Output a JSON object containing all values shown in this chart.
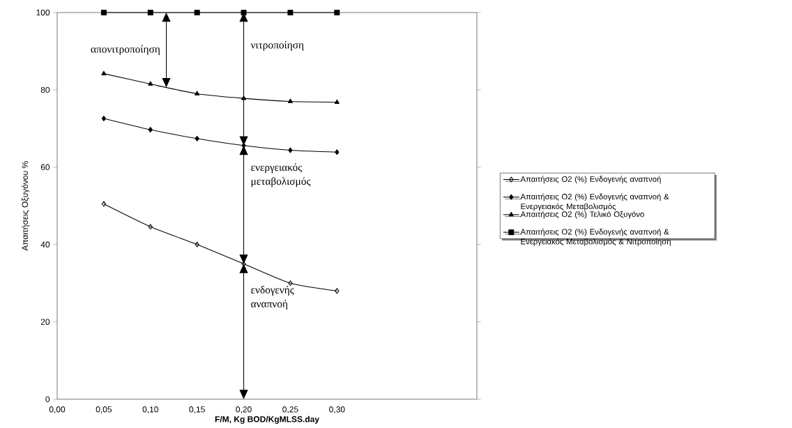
{
  "chart_data": {
    "type": "line",
    "xlabel": "F/M, Kg BOD/KgMLSS.day",
    "ylabel": "Απαιτήσεις Οξυγόνου %",
    "x": [
      0.05,
      0.1,
      0.15,
      0.2,
      0.25,
      0.3
    ],
    "series": [
      {
        "name": "Απαιτήσεις Ο2 (%) Ενδογενής αναπνοή",
        "color": "#000000",
        "marker": "diamond",
        "values": [
          50.5,
          44.6,
          40,
          35,
          30,
          28
        ]
      },
      {
        "name": "Απαιτήσεις Ο2 (%) Ενδογενής αναπνοή  & Ενεργειακός Μεταβολισμός",
        "color": "#000000",
        "marker": "diamond",
        "values": [
          72.6,
          69.7,
          67.4,
          65.6,
          64.4,
          63.9
        ]
      },
      {
        "name": "Απαιτήσεις Ο2 (%) Τελικό Οξυγόνο",
        "color": "#000000",
        "marker": "triangle",
        "values": [
          84.2,
          81.5,
          79,
          77.8,
          77,
          76.8
        ]
      },
      {
        "name": "Απαιτήσεις Ο2 (%) Ενδογενής αναπνοή  & Ενεργειακός  Μεταβολισμός & Νιτροποίηση",
        "color": "#000000",
        "marker": "square",
        "values": [
          100,
          100,
          100,
          100,
          100,
          100
        ]
      }
    ],
    "xlim": [
      0,
      0.45
    ],
    "xticks": [
      {
        "value": 0,
        "label": "0,00"
      },
      {
        "value": 0.05,
        "label": "0,05"
      },
      {
        "value": 0.1,
        "label": "0,10"
      },
      {
        "value": 0.15,
        "label": "0,15"
      },
      {
        "value": 0.2,
        "label": "0,20"
      },
      {
        "value": 0.25,
        "label": "0,25"
      },
      {
        "value": 0.3,
        "label": "0,30"
      }
    ],
    "ylim": [
      0,
      100
    ],
    "yticks": [
      0,
      20,
      40,
      60,
      80,
      100
    ],
    "grid": false,
    "legend": "right",
    "annotations": [
      "απονιτροποίηση",
      "νιτροποίηση",
      "ενεργειακός μεταβολισμός",
      "ενδογενής αναπνοή"
    ]
  }
}
